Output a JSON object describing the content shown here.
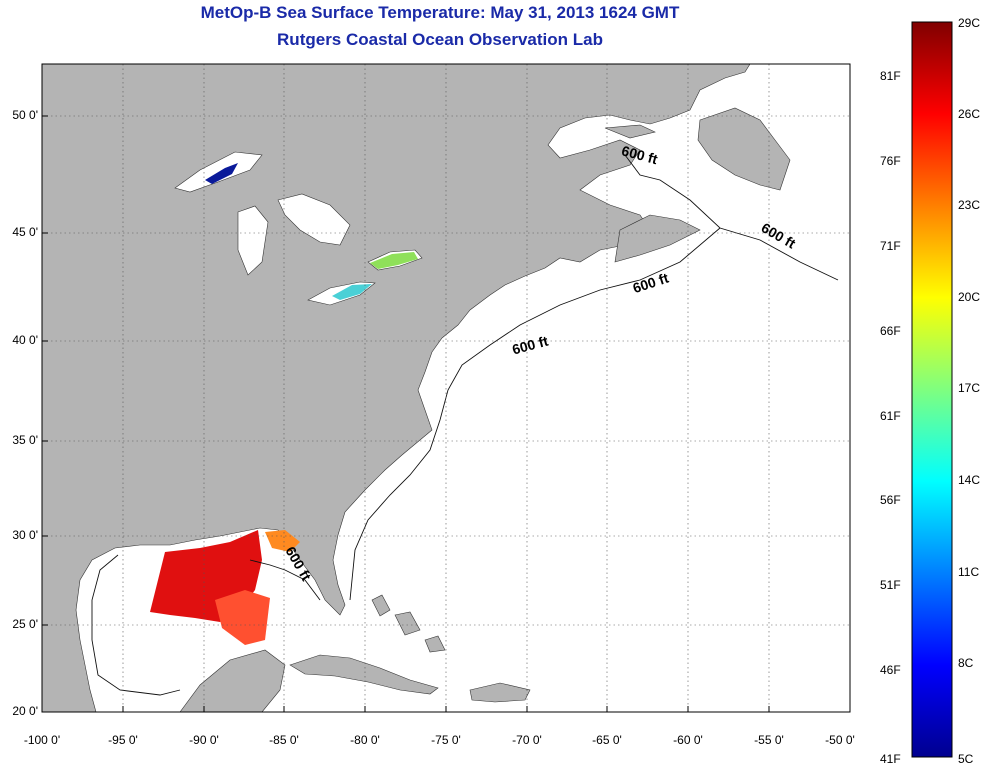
{
  "title": "MetOp-B Sea Surface Temperature:  May 31, 2013 1624 GMT",
  "subtitle": "Rutgers Coastal Ocean Observation Lab",
  "lat_ticks": [
    "50 0'",
    "45 0'",
    "40 0'",
    "35 0'",
    "30 0'",
    "25 0'",
    "20 0'"
  ],
  "lon_ticks": [
    "-100 0'",
    "-95 0'",
    "-90 0'",
    "-85 0'",
    "-80 0'",
    "-75 0'",
    "-70 0'",
    "-65 0'",
    "-60 0'",
    "-55 0'",
    "-50 0'"
  ],
  "isobath_label": "600 ft",
  "colorbar": {
    "celsius": [
      "29C",
      "26C",
      "23C",
      "20C",
      "17C",
      "14C",
      "11C",
      "8C",
      "5C"
    ],
    "fahrenheit": [
      "81F",
      "76F",
      "71F",
      "66F",
      "61F",
      "56F",
      "51F",
      "46F",
      "41F"
    ]
  },
  "colors": {
    "land": "#b4b4b4",
    "ocean": "#ffffff",
    "title": "#1a2aa8",
    "grid": "#555555"
  }
}
